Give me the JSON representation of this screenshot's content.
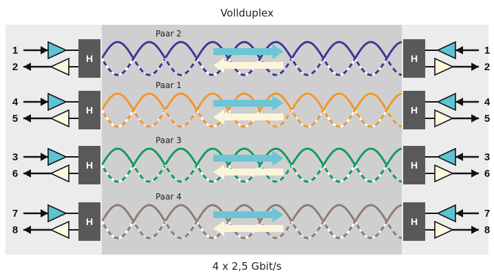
{
  "title": "Vollduplex",
  "caption": "4 x 2,5 Gbit/s",
  "hybrid_label": "H",
  "colors": {
    "background_panel": "#ececec",
    "channel": "#cfcfcf",
    "hybrid": "#595959",
    "tx_arrow": "#6cc5d6",
    "rx_arrow": "#fbf5dc",
    "tx_triangle": "#5cc3d3",
    "rx_triangle": "#fdf8de"
  },
  "pairs": [
    {
      "label": "Paar 2",
      "color": "#3c3796",
      "left_pins": [
        "1",
        "2"
      ],
      "right_pins": [
        "1",
        "2"
      ]
    },
    {
      "label": "Paar 1",
      "color": "#f0952b",
      "left_pins": [
        "4",
        "5"
      ],
      "right_pins": [
        "4",
        "5"
      ]
    },
    {
      "label": "Paar 3",
      "color": "#109a5c",
      "left_pins": [
        "3",
        "6"
      ],
      "right_pins": [
        "3",
        "6"
      ]
    },
    {
      "label": "Paar 4",
      "color": "#8e7a70",
      "left_pins": [
        "7",
        "8"
      ],
      "right_pins": [
        "7",
        "8"
      ]
    }
  ]
}
